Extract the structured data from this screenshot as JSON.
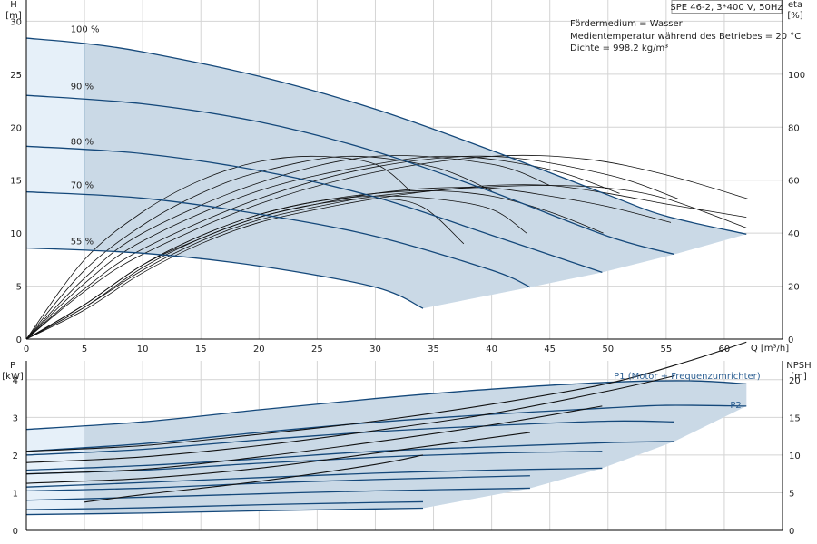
{
  "title": "SPE 46-2, 3*400 V, 50Hz",
  "info_lines": [
    "Fördermedium = Wasser",
    "Medientemperatur während des Betriebes = 20 °C",
    "Dichte = 998.2 kg/m³"
  ],
  "colors": {
    "curve": "#14487a",
    "envelope": "#cad9e6",
    "envelope_low": "#e6f0f9",
    "label_blue": "#2c5f92"
  },
  "chart_data": [
    {
      "type": "line",
      "name": "head-and-efficiency",
      "x_label": "Q [m³/h]",
      "y_label": "H",
      "y_unit": "[m]",
      "y2_label": "eta",
      "y2_unit": "[%]",
      "xlim": [
        0,
        65
      ],
      "ylim": [
        0,
        32
      ],
      "y2lim": [
        0,
        128
      ],
      "x_ticks": [
        0,
        5,
        10,
        15,
        20,
        25,
        30,
        35,
        40,
        45,
        50,
        55,
        60
      ],
      "y_ticks": [
        0,
        5,
        10,
        15,
        20,
        25,
        30
      ],
      "y2_ticks": [
        0,
        20,
        40,
        60,
        80,
        100
      ],
      "min_flow_q": 5,
      "head_curves": [
        {
          "label": "100 %",
          "label_at": [
            3.8,
            28.7
          ],
          "points": [
            [
              0,
              28.4
            ],
            [
              5,
              27.9
            ],
            [
              10,
              27.1
            ],
            [
              20,
              24.8
            ],
            [
              30,
              21.7
            ],
            [
              40,
              17.8
            ],
            [
              50,
              13.6
            ],
            [
              55,
              11.6
            ],
            [
              61.9,
              9.9
            ]
          ]
        },
        {
          "label": "90 %",
          "label_at": [
            3.8,
            23.3
          ],
          "points": [
            [
              0,
              23.0
            ],
            [
              10,
              22.2
            ],
            [
              20,
              20.5
            ],
            [
              30,
              17.7
            ],
            [
              40,
              13.9
            ],
            [
              50,
              9.7
            ],
            [
              55.7,
              8.0
            ]
          ]
        },
        {
          "label": "80 %",
          "label_at": [
            3.8,
            18.1
          ],
          "points": [
            [
              0,
              18.2
            ],
            [
              10,
              17.5
            ],
            [
              20,
              15.9
            ],
            [
              30,
              13.4
            ],
            [
              40,
              9.8
            ],
            [
              49.5,
              6.3
            ]
          ]
        },
        {
          "label": "70 %",
          "label_at": [
            3.8,
            14.0
          ],
          "points": [
            [
              0,
              13.9
            ],
            [
              10,
              13.3
            ],
            [
              20,
              11.8
            ],
            [
              30,
              9.7
            ],
            [
              40,
              6.5
            ],
            [
              43.3,
              4.9
            ]
          ]
        },
        {
          "label": "55 %",
          "label_at": [
            3.8,
            8.7
          ],
          "points": [
            [
              0,
              8.6
            ],
            [
              10,
              8.1
            ],
            [
              20,
              6.9
            ],
            [
              30,
              4.9
            ],
            [
              34.1,
              2.9
            ]
          ]
        }
      ],
      "eta_curves_thin": [
        {
          "points": [
            [
              0,
              0
            ],
            [
              5,
              30
            ],
            [
              10,
              48
            ],
            [
              15,
              60
            ],
            [
              20,
              67
            ],
            [
              25,
              69
            ],
            [
              30,
              66
            ],
            [
              33.0,
              56
            ]
          ]
        },
        {
          "points": [
            [
              0,
              0
            ],
            [
              5,
              26
            ],
            [
              10,
              43
            ],
            [
              15,
              55
            ],
            [
              20,
              63
            ],
            [
              27.5,
              69
            ],
            [
              35,
              65
            ],
            [
              40,
              56
            ]
          ]
        },
        {
          "points": [
            [
              0,
              0
            ],
            [
              5,
              23
            ],
            [
              10,
              40
            ],
            [
              20,
              59
            ],
            [
              30,
              69
            ],
            [
              40,
              66
            ],
            [
              45,
              58
            ]
          ]
        },
        {
          "points": [
            [
              0,
              0
            ],
            [
              5,
              21
            ],
            [
              10,
              37
            ],
            [
              20,
              56
            ],
            [
              30,
              66
            ],
            [
              37,
              69
            ],
            [
              45,
              64
            ],
            [
              51,
              55
            ]
          ]
        },
        {
          "points": [
            [
              0,
              0
            ],
            [
              5,
              19
            ],
            [
              10,
              34
            ],
            [
              20,
              53
            ],
            [
              30,
              65
            ],
            [
              40,
              69
            ],
            [
              50,
              62
            ],
            [
              56,
              53
            ]
          ]
        },
        {
          "points": [
            [
              0,
              0
            ],
            [
              5,
              18
            ],
            [
              10,
              32
            ],
            [
              20,
              51
            ],
            [
              30,
              63
            ],
            [
              40,
              69
            ],
            [
              48,
              68
            ],
            [
              55,
              62
            ],
            [
              62,
              53
            ]
          ]
        }
      ],
      "eta_curves_thick": [
        {
          "points": [
            [
              0,
              0
            ],
            [
              5,
              13
            ],
            [
              10,
              28
            ],
            [
              15,
              38
            ],
            [
              20,
              46
            ],
            [
              25,
              51
            ],
            [
              30,
              53
            ],
            [
              34.0,
              50
            ],
            [
              37.6,
              36
            ]
          ]
        },
        {
          "points": [
            [
              0,
              0
            ],
            [
              5,
              13
            ],
            [
              10,
              28
            ],
            [
              15,
              39
            ],
            [
              20,
              47
            ],
            [
              25,
              52
            ],
            [
              30,
              54
            ],
            [
              35,
              53
            ],
            [
              40,
              49
            ],
            [
              43.0,
              40
            ]
          ]
        },
        {
          "points": [
            [
              0,
              0
            ],
            [
              5,
              13
            ],
            [
              10,
              28
            ],
            [
              15,
              39
            ],
            [
              20,
              47
            ],
            [
              25,
              52
            ],
            [
              30,
              55
            ],
            [
              35,
              56
            ],
            [
              40,
              54
            ],
            [
              45,
              48
            ],
            [
              49.6,
              40
            ]
          ]
        },
        {
          "points": [
            [
              0,
              0
            ],
            [
              5,
              12
            ],
            [
              10,
              27
            ],
            [
              15,
              38
            ],
            [
              20,
              46
            ],
            [
              25,
              51
            ],
            [
              30,
              55
            ],
            [
              35,
              57
            ],
            [
              40,
              57
            ],
            [
              45,
              54
            ],
            [
              50,
              50
            ],
            [
              55.4,
              44
            ]
          ]
        },
        {
          "points": [
            [
              0,
              0
            ],
            [
              5,
              12
            ],
            [
              10,
              26
            ],
            [
              15,
              37
            ],
            [
              20,
              45
            ],
            [
              25,
              50
            ],
            [
              30,
              54
            ],
            [
              35,
              56
            ],
            [
              40,
              58
            ],
            [
              45,
              58
            ],
            [
              50,
              55
            ],
            [
              55,
              51
            ],
            [
              61.9,
              46
            ]
          ]
        },
        {
          "points": [
            [
              0,
              0
            ],
            [
              5,
              11
            ],
            [
              10,
              25
            ],
            [
              15,
              36
            ],
            [
              20,
              44
            ],
            [
              25,
              49
            ],
            [
              30,
              53
            ],
            [
              35,
              56
            ],
            [
              40,
              57.5
            ],
            [
              45,
              58
            ],
            [
              50,
              57
            ],
            [
              55,
              53
            ],
            [
              61.9,
              42
            ]
          ]
        }
      ]
    },
    {
      "type": "line",
      "name": "power-and-npsh",
      "y_label": "P",
      "y_unit": "[kW]",
      "y2_label": "NPSH",
      "y2_unit": "[m]",
      "xlim": [
        0,
        65
      ],
      "ylim": [
        0,
        4.5
      ],
      "y2lim": [
        0,
        22.5
      ],
      "y_ticks": [
        0,
        1,
        2,
        3,
        4
      ],
      "y2_ticks": [
        0,
        5,
        10,
        15,
        20
      ],
      "series_labels": {
        "p1": {
          "text": "P1 (Motor + Frequenzumrichter)",
          "at": [
            50.5,
            4.0
          ]
        },
        "p2": {
          "text": "P2",
          "at": [
            60.5,
            3.08
          ]
        }
      },
      "p1_curves": [
        {
          "points": [
            [
              0,
              2.68
            ],
            [
              10,
              2.88
            ],
            [
              20,
              3.2
            ],
            [
              30,
              3.5
            ],
            [
              40,
              3.75
            ],
            [
              50,
              3.93
            ],
            [
              57,
              3.97
            ],
            [
              61.9,
              3.89
            ]
          ]
        },
        {
          "points": [
            [
              0,
              2.0
            ],
            [
              10,
              2.15
            ],
            [
              20,
              2.4
            ],
            [
              30,
              2.62
            ],
            [
              40,
              2.78
            ],
            [
              50,
              2.9
            ],
            [
              55.7,
              2.88
            ]
          ]
        },
        {
          "points": [
            [
              0,
              1.5
            ],
            [
              10,
              1.6
            ],
            [
              20,
              1.78
            ],
            [
              30,
              1.94
            ],
            [
              40,
              2.05
            ],
            [
              49.5,
              2.1
            ]
          ]
        },
        {
          "points": [
            [
              0,
              1.05
            ],
            [
              10,
              1.12
            ],
            [
              20,
              1.25
            ],
            [
              30,
              1.35
            ],
            [
              43.3,
              1.45
            ]
          ]
        },
        {
          "points": [
            [
              0,
              0.55
            ],
            [
              10,
              0.6
            ],
            [
              20,
              0.68
            ],
            [
              30,
              0.74
            ],
            [
              34.1,
              0.76
            ]
          ]
        }
      ],
      "p2_curves": [
        {
          "points": [
            [
              0,
              2.1
            ],
            [
              10,
              2.3
            ],
            [
              20,
              2.6
            ],
            [
              30,
              2.87
            ],
            [
              40,
              3.08
            ],
            [
              50,
              3.25
            ],
            [
              55,
              3.32
            ],
            [
              61.9,
              3.3
            ]
          ]
        },
        {
          "points": [
            [
              0,
              1.6
            ],
            [
              10,
              1.72
            ],
            [
              20,
              1.9
            ],
            [
              30,
              2.1
            ],
            [
              40,
              2.22
            ],
            [
              50,
              2.33
            ],
            [
              55.7,
              2.36
            ]
          ]
        },
        {
          "points": [
            [
              0,
              1.15
            ],
            [
              10,
              1.27
            ],
            [
              20,
              1.4
            ],
            [
              30,
              1.52
            ],
            [
              40,
              1.6
            ],
            [
              49.5,
              1.65
            ]
          ]
        },
        {
          "points": [
            [
              0,
              0.8
            ],
            [
              10,
              0.88
            ],
            [
              20,
              0.97
            ],
            [
              30,
              1.05
            ],
            [
              43.3,
              1.12
            ]
          ]
        },
        {
          "points": [
            [
              0,
              0.42
            ],
            [
              10,
              0.46
            ],
            [
              20,
              0.52
            ],
            [
              30,
              0.57
            ],
            [
              34.1,
              0.59
            ]
          ]
        }
      ],
      "npsh_curves": [
        {
          "points": [
            [
              0,
              2.1
            ],
            [
              10,
              2.25
            ],
            [
              20,
              2.55
            ],
            [
              30,
              2.9
            ],
            [
              40,
              3.35
            ],
            [
              50,
              3.9
            ],
            [
              57,
              4.5
            ],
            [
              61.9,
              5.0
            ]
          ]
        },
        {
          "points": [
            [
              0,
              1.8
            ],
            [
              10,
              1.95
            ],
            [
              20,
              2.25
            ],
            [
              30,
              2.65
            ],
            [
              40,
              3.1
            ],
            [
              50,
              3.7
            ],
            [
              55.7,
              4.1
            ]
          ]
        },
        {
          "points": [
            [
              0,
              1.5
            ],
            [
              10,
              1.62
            ],
            [
              20,
              1.95
            ],
            [
              30,
              2.35
            ],
            [
              40,
              2.8
            ],
            [
              49.5,
              3.3
            ]
          ]
        },
        {
          "points": [
            [
              0,
              1.25
            ],
            [
              10,
              1.38
            ],
            [
              20,
              1.65
            ],
            [
              30,
              2.05
            ],
            [
              43.3,
              2.6
            ]
          ]
        },
        {
          "points": [
            [
              5,
              0.75
            ],
            [
              10,
              0.95
            ],
            [
              20,
              1.3
            ],
            [
              30,
              1.75
            ],
            [
              34.1,
              2.0
            ]
          ]
        }
      ]
    }
  ]
}
